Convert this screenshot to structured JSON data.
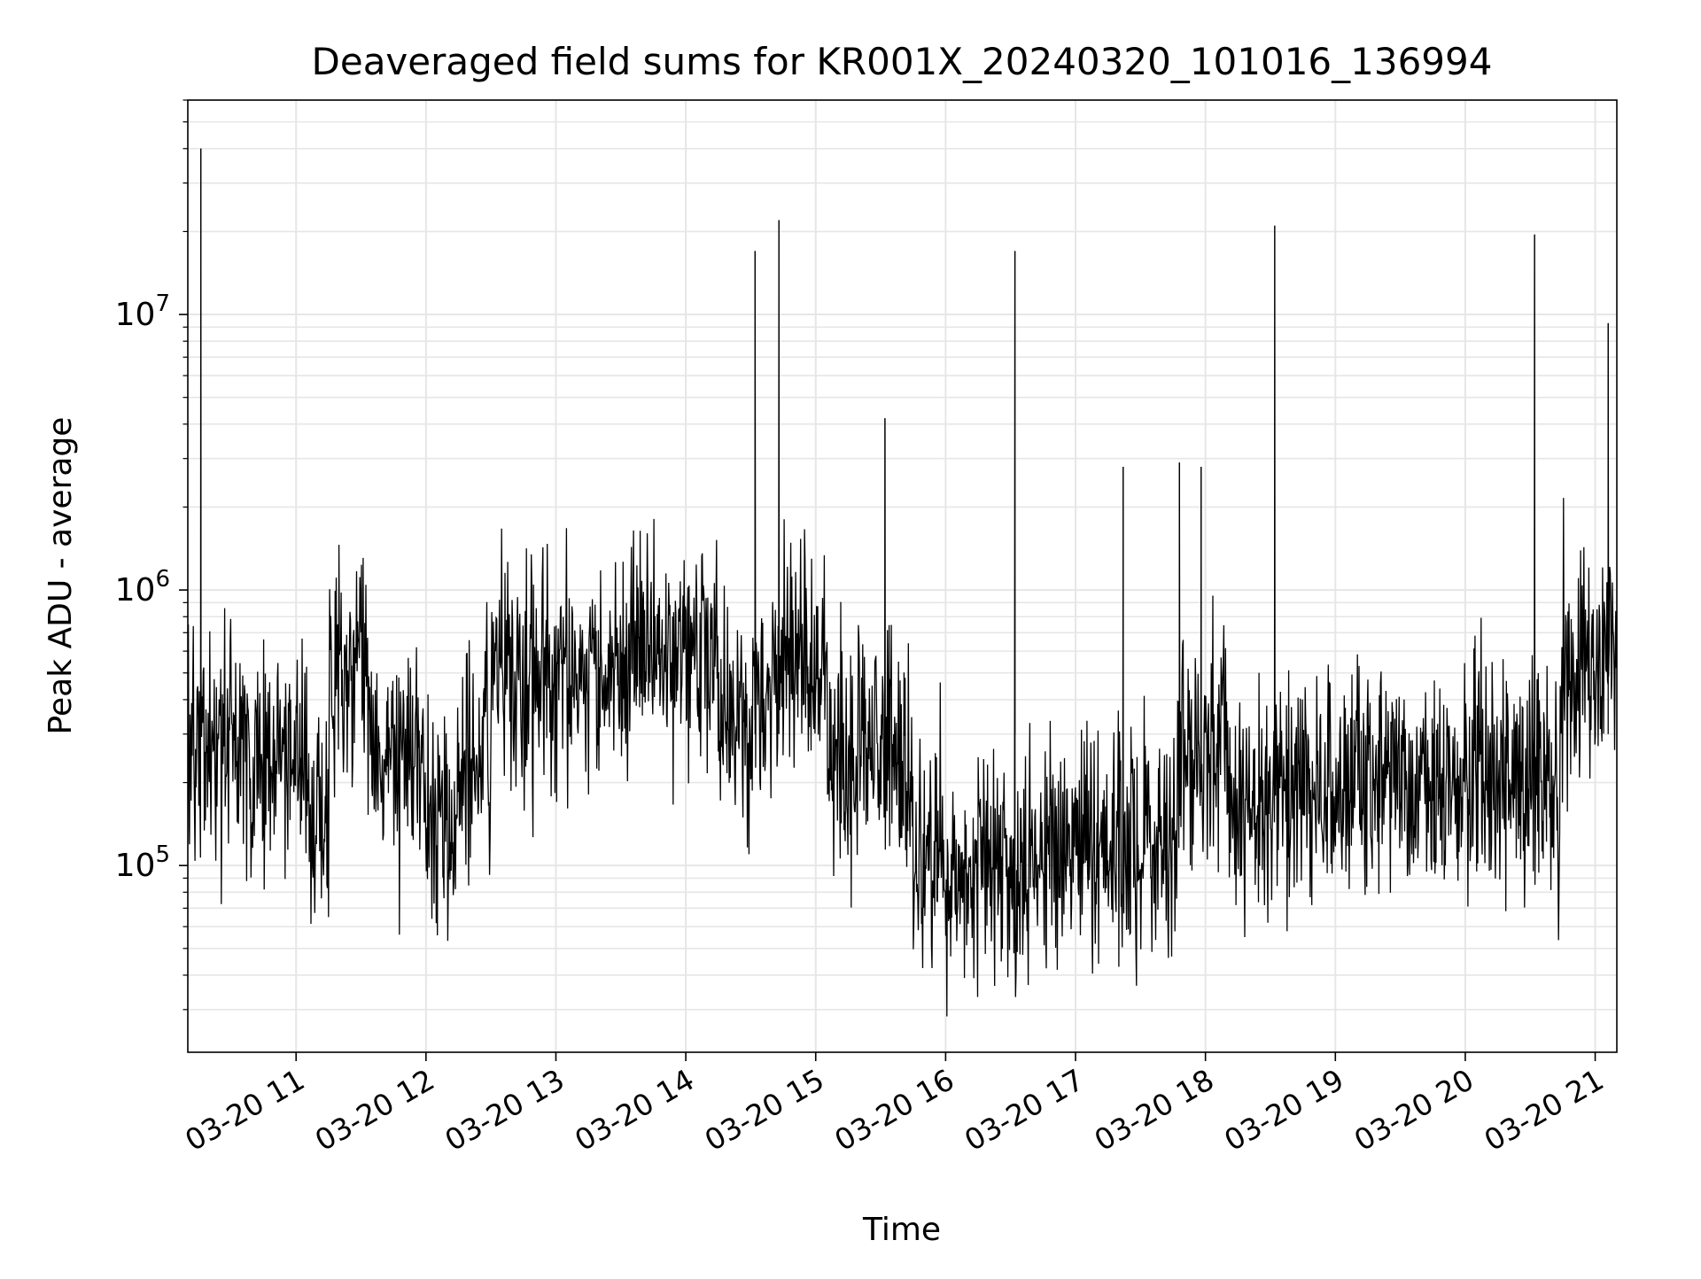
{
  "chart_data": {
    "type": "line",
    "title": "Deaveraged field sums for KR001X_20240320_101016_136994",
    "xlabel": "Time",
    "ylabel": "Peak ADU - average",
    "x_scale": "time",
    "y_scale": "log",
    "xlim": [
      "2024-03-20 10:10",
      "2024-03-20 21:10"
    ],
    "ylim": [
      21000,
      60000000
    ],
    "x_ticks": [
      "03-20 11",
      "03-20 12",
      "03-20 13",
      "03-20 14",
      "03-20 15",
      "03-20 16",
      "03-20 17",
      "03-20 18",
      "03-20 19",
      "03-20 20",
      "03-20 21"
    ],
    "y_ticks": [
      {
        "value": 100000,
        "base": "10",
        "exp": "5"
      },
      {
        "value": 1000000,
        "base": "10",
        "exp": "6"
      },
      {
        "value": 10000000,
        "base": "10",
        "exp": "7"
      }
    ],
    "grid": true,
    "line_color": "#000000",
    "grid_color": "#e6e6e6",
    "segments": [
      {
        "start": "2024-03-20 10:10",
        "end": "2024-03-20 10:35",
        "level": 300000
      },
      {
        "start": "2024-03-20 10:35",
        "end": "2024-03-20 11:05",
        "level": 250000
      },
      {
        "start": "2024-03-20 11:05",
        "end": "2024-03-20 11:15",
        "level": 150000
      },
      {
        "start": "2024-03-20 11:15",
        "end": "2024-03-20 11:35",
        "level": 500000
      },
      {
        "start": "2024-03-20 11:35",
        "end": "2024-03-20 12:00",
        "level": 250000
      },
      {
        "start": "2024-03-20 12:00",
        "end": "2024-03-20 12:15",
        "level": 160000
      },
      {
        "start": "2024-03-20 12:15",
        "end": "2024-03-20 12:30",
        "level": 250000
      },
      {
        "start": "2024-03-20 12:30",
        "end": "2024-03-20 13:30",
        "level": 500000
      },
      {
        "start": "2024-03-20 13:30",
        "end": "2024-03-20 14:15",
        "level": 600000
      },
      {
        "start": "2024-03-20 14:15",
        "end": "2024-03-20 14:40",
        "level": 350000
      },
      {
        "start": "2024-03-20 14:40",
        "end": "2024-03-20 15:05",
        "level": 550000
      },
      {
        "start": "2024-03-20 15:05",
        "end": "2024-03-20 15:45",
        "level": 250000
      },
      {
        "start": "2024-03-20 15:45",
        "end": "2024-03-20 16:45",
        "level": 100000
      },
      {
        "start": "2024-03-20 16:45",
        "end": "2024-03-20 17:15",
        "level": 115000
      },
      {
        "start": "2024-03-20 17:15",
        "end": "2024-03-20 17:47",
        "level": 120000
      },
      {
        "start": "2024-03-20 17:47",
        "end": "2024-03-20 18:10",
        "level": 280000
      },
      {
        "start": "2024-03-20 18:10",
        "end": "2024-03-20 18:30",
        "level": 180000
      },
      {
        "start": "2024-03-20 18:30",
        "end": "2024-03-20 20:45",
        "level": 200000
      },
      {
        "start": "2024-03-20 20:45",
        "end": "2024-03-20 21:10",
        "level": 550000
      }
    ],
    "spikes": [
      {
        "time": "2024-03-20 10:16",
        "value": 40000000
      },
      {
        "time": "2024-03-20 14:32",
        "value": 17000000
      },
      {
        "time": "2024-03-20 14:43",
        "value": 22000000
      },
      {
        "time": "2024-03-20 15:32",
        "value": 4200000
      },
      {
        "time": "2024-03-20 16:32",
        "value": 17000000
      },
      {
        "time": "2024-03-20 17:22",
        "value": 2800000
      },
      {
        "time": "2024-03-20 17:48",
        "value": 2900000
      },
      {
        "time": "2024-03-20 17:58",
        "value": 2800000
      },
      {
        "time": "2024-03-20 18:32",
        "value": 21000000
      },
      {
        "time": "2024-03-20 20:32",
        "value": 19500000
      },
      {
        "time": "2024-03-20 21:06",
        "value": 9300000
      }
    ]
  }
}
